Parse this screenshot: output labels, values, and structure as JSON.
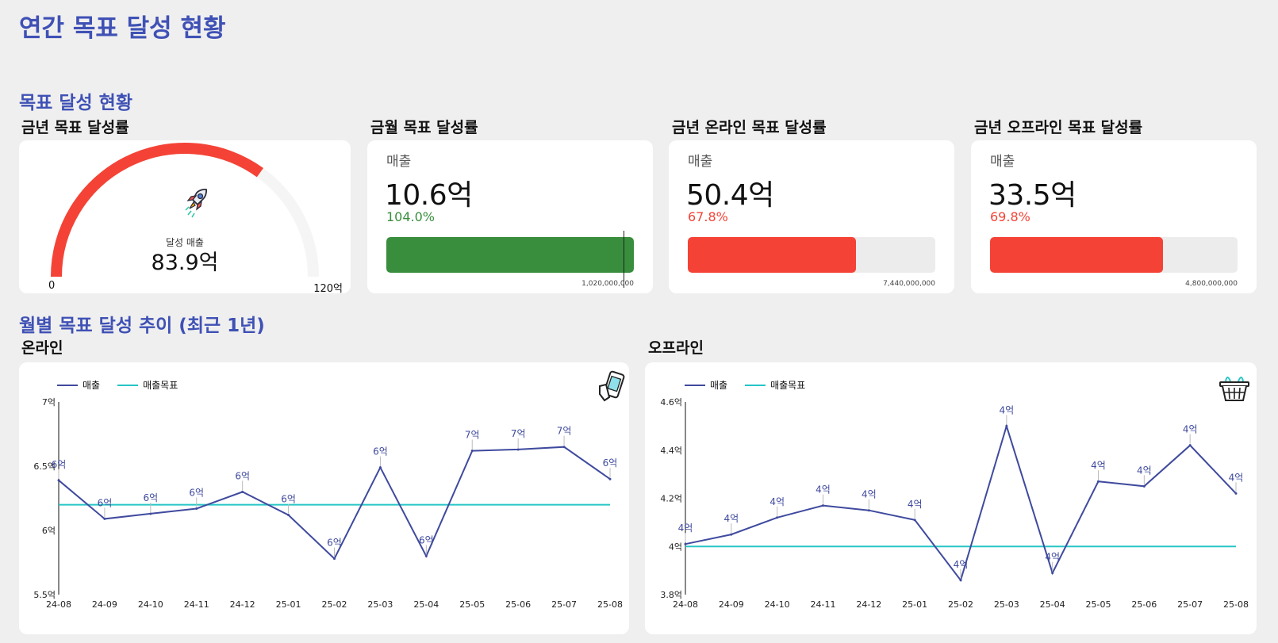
{
  "page": {
    "title": "연간 목표 달성 현황"
  },
  "sections": {
    "kpi_title": "목표 달성 현황",
    "trend_title": "월별 목표 달성 추이 (최근 1년)"
  },
  "gauge_card": {
    "title": "금년 목표 달성률",
    "icon": "rocket-icon",
    "caption": "달성 매출",
    "value_label": "83.9억",
    "min_label": "0",
    "max_label": "120억",
    "value": 83.9,
    "max": 120,
    "colors": {
      "fill": "#f44336",
      "track": "#f5f5f5"
    }
  },
  "kpis": [
    {
      "title": "금월 목표 달성률",
      "label": "매출",
      "value": "10.6억",
      "rate": "104.0%",
      "rate_value": 104.0,
      "target": "1,020,000,000",
      "color": "#388e3c"
    },
    {
      "title": "금년 온라인 목표 달성률",
      "label": "매출",
      "value": "50.4억",
      "rate": "67.8%",
      "rate_value": 67.8,
      "target": "7,440,000,000",
      "color": "#f44336"
    },
    {
      "title": "금년 오프라인 목표 달성률",
      "label": "매출",
      "value": "33.5억",
      "rate": "69.8%",
      "rate_value": 69.8,
      "target": "4,800,000,000",
      "color": "#f44336"
    }
  ],
  "chart_data": [
    {
      "type": "line",
      "title": "온라인",
      "icon": "mobile-shopping-icon",
      "categories": [
        "24-08",
        "24-09",
        "24-10",
        "24-11",
        "24-12",
        "25-01",
        "25-02",
        "25-03",
        "25-04",
        "25-05",
        "25-06",
        "25-07",
        "25-08"
      ],
      "yticks": [
        "5.5억",
        "6억",
        "6.5억",
        "7억"
      ],
      "ylim": [
        5.5,
        7.0
      ],
      "grid": false,
      "legend": "top-left",
      "series": [
        {
          "name": "매출",
          "color": "#3f4a9e",
          "values": [
            6.39,
            6.09,
            6.13,
            6.17,
            6.3,
            6.12,
            5.78,
            6.49,
            5.8,
            6.62,
            6.63,
            6.65,
            6.4
          ],
          "labels": [
            "6억",
            "6억",
            "6억",
            "6억",
            "6억",
            "6억",
            "6억",
            "6억",
            "6억",
            "7억",
            "7억",
            "7억",
            "6억"
          ]
        },
        {
          "name": "매출목표",
          "color": "#26c6c6",
          "values": [
            6.2,
            6.2,
            6.2,
            6.2,
            6.2,
            6.2,
            6.2,
            6.2,
            6.2,
            6.2,
            6.2,
            6.2,
            6.2
          ]
        }
      ]
    },
    {
      "type": "line",
      "title": "오프라인",
      "icon": "shopping-basket-icon",
      "categories": [
        "24-08",
        "24-09",
        "24-10",
        "24-11",
        "24-12",
        "25-01",
        "25-02",
        "25-03",
        "25-04",
        "25-05",
        "25-06",
        "25-07",
        "25-08"
      ],
      "yticks": [
        "3.8억",
        "4억",
        "4.2억",
        "4.4억",
        "4.6억"
      ],
      "ylim": [
        3.8,
        4.6
      ],
      "grid": false,
      "legend": "top-left",
      "series": [
        {
          "name": "매출",
          "color": "#3f4a9e",
          "values": [
            4.01,
            4.05,
            4.12,
            4.17,
            4.15,
            4.11,
            3.86,
            4.5,
            3.89,
            4.27,
            4.25,
            4.42,
            4.22
          ],
          "labels": [
            "4억",
            "4억",
            "4억",
            "4억",
            "4억",
            "4억",
            "4억",
            "4억",
            "4억",
            "4억",
            "4억",
            "4억",
            "4억"
          ]
        },
        {
          "name": "매출목표",
          "color": "#26c6c6",
          "values": [
            4.0,
            4.0,
            4.0,
            4.0,
            4.0,
            4.0,
            4.0,
            4.0,
            4.0,
            4.0,
            4.0,
            4.0,
            4.0
          ]
        }
      ]
    }
  ]
}
